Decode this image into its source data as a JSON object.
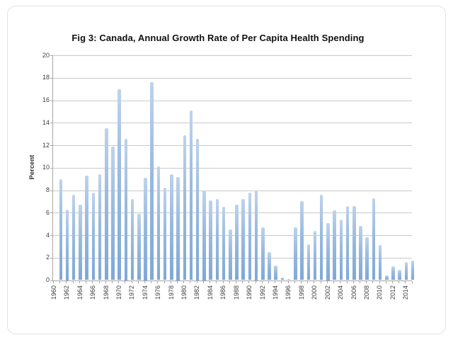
{
  "chart_data": {
    "type": "bar",
    "title": "Fig 3: Canada, Annual Growth Rate of Per Capita Health Spending",
    "ylabel": "Percent",
    "xlabel": "",
    "ylim": [
      0,
      20
    ],
    "ytick_step": 2,
    "xtick_label_every_years": 2,
    "grid": true,
    "legend": "none",
    "bar_color_top": "#bdd3ed",
    "bar_color_bottom": "#7ea8d8",
    "gridline_color": "#c9c9c9",
    "axis_color": "#a6a6a6",
    "categories": [
      "1960",
      "1961",
      "1962",
      "1963",
      "1964",
      "1965",
      "1966",
      "1967",
      "1968",
      "1969",
      "1970",
      "1971",
      "1972",
      "1973",
      "1974",
      "1975",
      "1976",
      "1977",
      "1978",
      "1979",
      "1980",
      "1981",
      "1982",
      "1983",
      "1984",
      "1985",
      "1986",
      "1987",
      "1988",
      "1989",
      "1990",
      "1991",
      "1992",
      "1993",
      "1994",
      "1995",
      "1996",
      "1997",
      "1998",
      "1999",
      "2000",
      "2001",
      "2002",
      "2003",
      "2004",
      "2005",
      "2006",
      "2007",
      "2008",
      "2009",
      "2010",
      "2011",
      "2012",
      "2013",
      "2014"
    ],
    "values": [
      9.0,
      6.3,
      7.6,
      6.7,
      9.3,
      7.8,
      9.4,
      13.5,
      11.9,
      17.0,
      12.6,
      7.2,
      5.9,
      9.1,
      17.6,
      10.1,
      8.2,
      9.4,
      9.2,
      12.9,
      15.1,
      12.6,
      8.0,
      7.1,
      7.2,
      6.5,
      4.5,
      6.7,
      7.2,
      7.8,
      8.0,
      4.7,
      2.5,
      1.3,
      0.2,
      0.1,
      4.7,
      7.0,
      3.2,
      4.4,
      7.6,
      5.1,
      6.2,
      5.4,
      6.6,
      6.6,
      4.8,
      3.8,
      7.3,
      3.1,
      0.4,
      1.2,
      0.9,
      1.6,
      1.75
    ]
  }
}
